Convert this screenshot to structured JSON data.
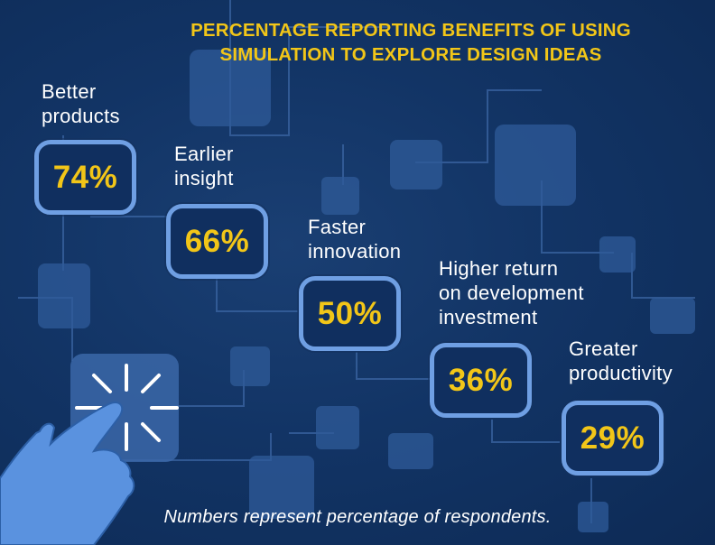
{
  "chart_data": {
    "type": "bar",
    "title": "PERCENTAGE REPORTING BENEFITS OF USING SIMULATION TO EXPLORE DESIGN IDEAS",
    "title_lines": [
      "PERCENTAGE REPORTING BENEFITS OF USING",
      "SIMULATION TO EXPLORE DESIGN IDEAS"
    ],
    "categories": [
      "Better products",
      "Earlier insight",
      "Faster innovation",
      "Higher return on development investment",
      "Greater productivity"
    ],
    "category_lines": [
      [
        "Better",
        "products"
      ],
      [
        "Earlier",
        "insight"
      ],
      [
        "Faster",
        "innovation"
      ],
      [
        "Higher return",
        "on development",
        "investment"
      ],
      [
        "Greater",
        "productivity"
      ]
    ],
    "values": [
      74,
      66,
      50,
      36,
      29
    ],
    "value_labels": [
      "74%",
      "66%",
      "50%",
      "36%",
      "29%"
    ],
    "unit": "%",
    "footnote": "Numbers represent percentage of respondents.",
    "colors": {
      "background": "#123465",
      "title": "#f2c618",
      "value": "#f2c618",
      "box_border": "#6f9fe3",
      "label": "#ffffff"
    }
  },
  "icons": {
    "hand": "pointing-hand-icon",
    "click": "click-burst-icon"
  }
}
